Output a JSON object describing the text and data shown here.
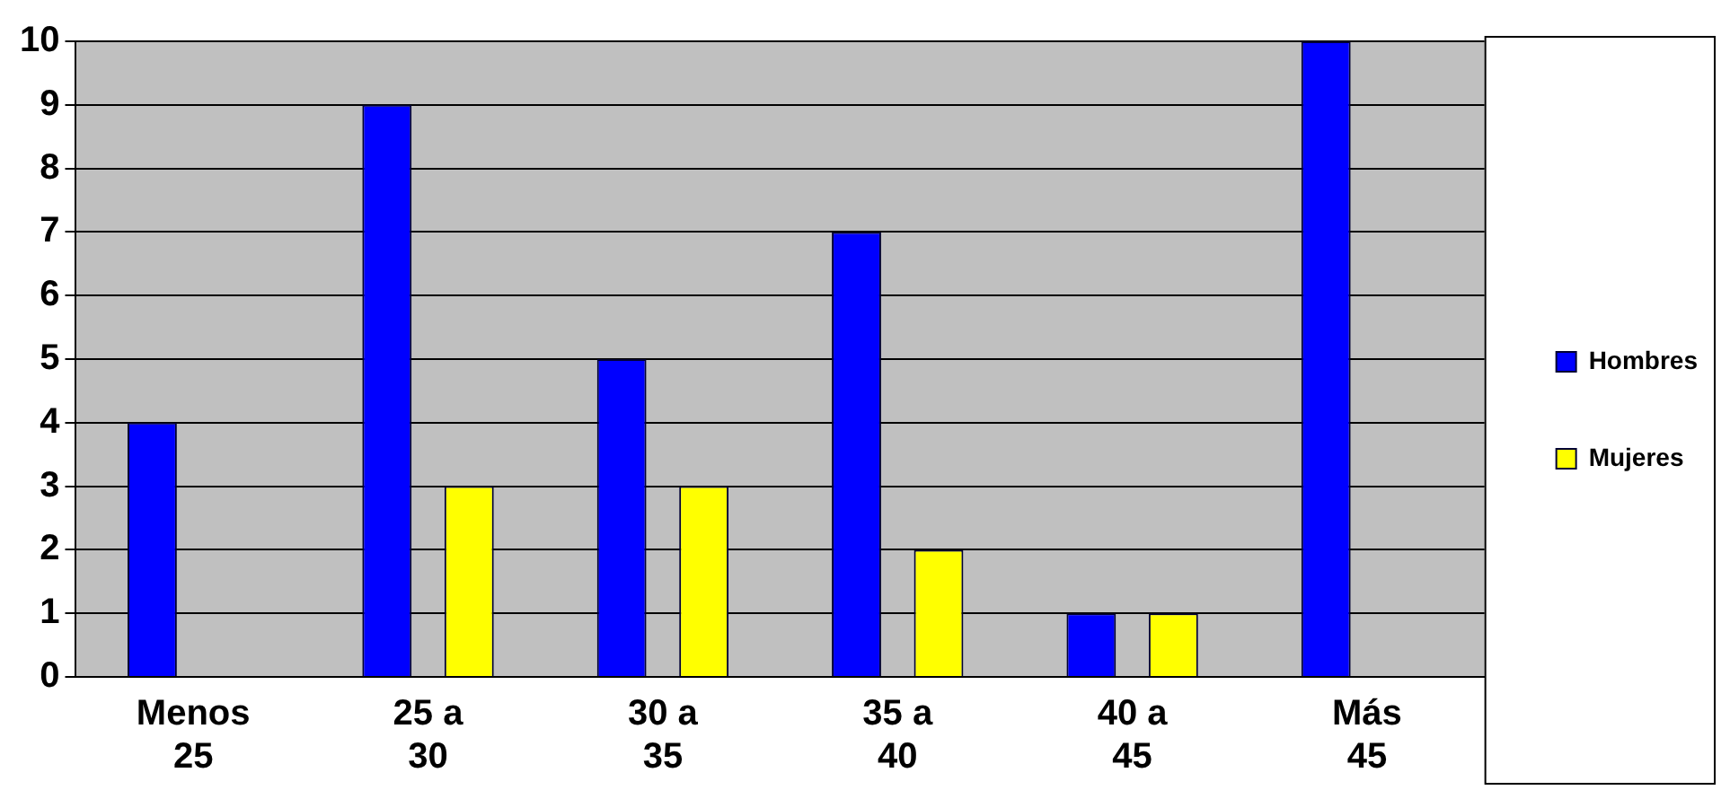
{
  "chart_data": {
    "type": "bar",
    "categories": [
      "Menos 25",
      "25 a 30",
      "30 a 35",
      "35 a 40",
      "40 a 45",
      "Más 45"
    ],
    "series": [
      {
        "name": "Hombres",
        "color": "#0000ff",
        "values": [
          4,
          9,
          5,
          7,
          1,
          10
        ]
      },
      {
        "name": "Mujeres",
        "color": "#ffff00",
        "values": [
          0,
          3,
          3,
          2,
          1,
          0
        ]
      }
    ],
    "ylim": [
      0,
      10
    ],
    "yticks": [
      0,
      1,
      2,
      3,
      4,
      5,
      6,
      7,
      8,
      9,
      10
    ],
    "grid": "y",
    "legend": "right"
  }
}
